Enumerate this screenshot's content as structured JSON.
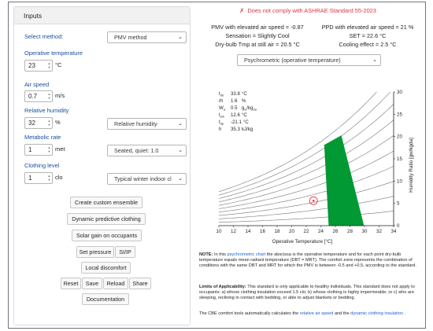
{
  "inputs": {
    "header": "Inputs",
    "method": {
      "label": "Select method:",
      "value": "PMV method"
    },
    "operative_temperature": {
      "label": "Operative temperature",
      "value": "23",
      "unit": "°C"
    },
    "air_speed": {
      "label": "Air speed",
      "value": "0.7",
      "unit": "m/s"
    },
    "relative_humidity": {
      "label": "Relative humidity",
      "value": "32",
      "unit": "%",
      "mode": "Relative humidity"
    },
    "metabolic_rate": {
      "label": "Metabolic rate",
      "value": "1",
      "unit": "met",
      "activity": "Seated, quiet: 1.0"
    },
    "clothing_level": {
      "label": "Clothing level",
      "value": "1",
      "unit": "clo",
      "ensemble": "Typical winter indoor cl"
    }
  },
  "buttons": {
    "create_ensemble": "Create custom ensemble",
    "dynamic_clothing": "Dynamic predictive clothing",
    "solar_gain": "Solar gain on occupants",
    "set_pressure": "Set pressure",
    "si_ip": "SI/IP",
    "local_discomfort": "Local discomfort",
    "reset": "Reset",
    "save": "Save",
    "reload": "Reload",
    "share": "Share",
    "documentation": "Documentation"
  },
  "results": {
    "compliance_icon": "✗",
    "compliance": "Does not comply with ASHRAE Standard 55-2023",
    "pmv": "PMV with elevated air speed = -0.87",
    "ppd": "PPD with elevated air speed = 21 %",
    "sensation": "Sensation = Slightly Cool",
    "set": "SET = 22.6 °C",
    "still_air": "Dry-bulb Tmp at still air = 20.5 °C",
    "cooling": "Cooling effect = 2.5 °C"
  },
  "chart_select": "Psychrometric (operative temperature)",
  "psy": {
    "tdb_label": "t",
    "tdb_sub": "db",
    "tdb": "33.8",
    "tdb_unit": "°C",
    "rh_label": "rh",
    "rh": "1.6",
    "rh_unit": "%",
    "wa_label": "W",
    "wa_sub": "a",
    "wa": "0.5",
    "wa_unit": "g",
    "wa_unit_sub1": "w",
    "wa_unit_mid": "/kg",
    "wa_unit_sub2": "da",
    "twb_label": "t",
    "twb_sub": "wb",
    "twb": "12.6",
    "twb_unit": "°C",
    "tdp_label": "t",
    "tdp_sub": "dp",
    "tdp": "-21.1",
    "tdp_unit": "°C",
    "h_label": "h",
    "h": "35.3",
    "h_unit": "kJ/kg"
  },
  "chart_data": {
    "type": "scatter",
    "xlabel": "Operative Temperature [°C]",
    "ylabel": "Humidity Ratio [gw/kgda]",
    "xlim": [
      10,
      34
    ],
    "ylim": [
      0,
      30
    ],
    "x_ticks": [
      10,
      12,
      14,
      16,
      18,
      20,
      22,
      24,
      26,
      28,
      30,
      32,
      34
    ],
    "y_ticks": [
      0,
      5,
      10,
      15,
      20,
      25,
      30
    ],
    "rh_curves": [
      10,
      20,
      30,
      40,
      50,
      60,
      70,
      80,
      90,
      100
    ],
    "comfort_zone": [
      [
        25.1,
        0
      ],
      [
        29.9,
        0
      ],
      [
        26.8,
        20.2
      ],
      [
        24.5,
        18.1
      ]
    ],
    "comfort_zone_color": "#009933",
    "point": {
      "x": 23,
      "y": 5.6,
      "color": "#e8333a"
    }
  },
  "notes": {
    "note_title": "NOTE:",
    "note_pre": " In this ",
    "note_link": "psychrometric chart",
    "note_body": " the abscissa is the operative temperature and for each point dry-bulb temperature equals mean radiant temperature (DBT = MRT). The comfort zone represents the combination of conditions with the same DBT and MRT for which the PMV is between -0.5 and +0.5, according to the standard.",
    "limits_title": "Limits of Applicability:",
    "limits_body": " This standard is only applicable to healthy individuals. This standard does not apply to occupants: a) whose clothing insulation exceed 1.5 clo; b) whose clothing is highly impermeable; or c) who are sleeping, reclining in contact with bedding, or able to adjust blankets or bedding.",
    "cbe_pre": "The CBE comfort tools automatically calculates the ",
    "cbe_link1": "relative air speed",
    "cbe_mid": " and the ",
    "cbe_link2": "dynamic clothing insulation",
    "cbe_post": " ."
  }
}
